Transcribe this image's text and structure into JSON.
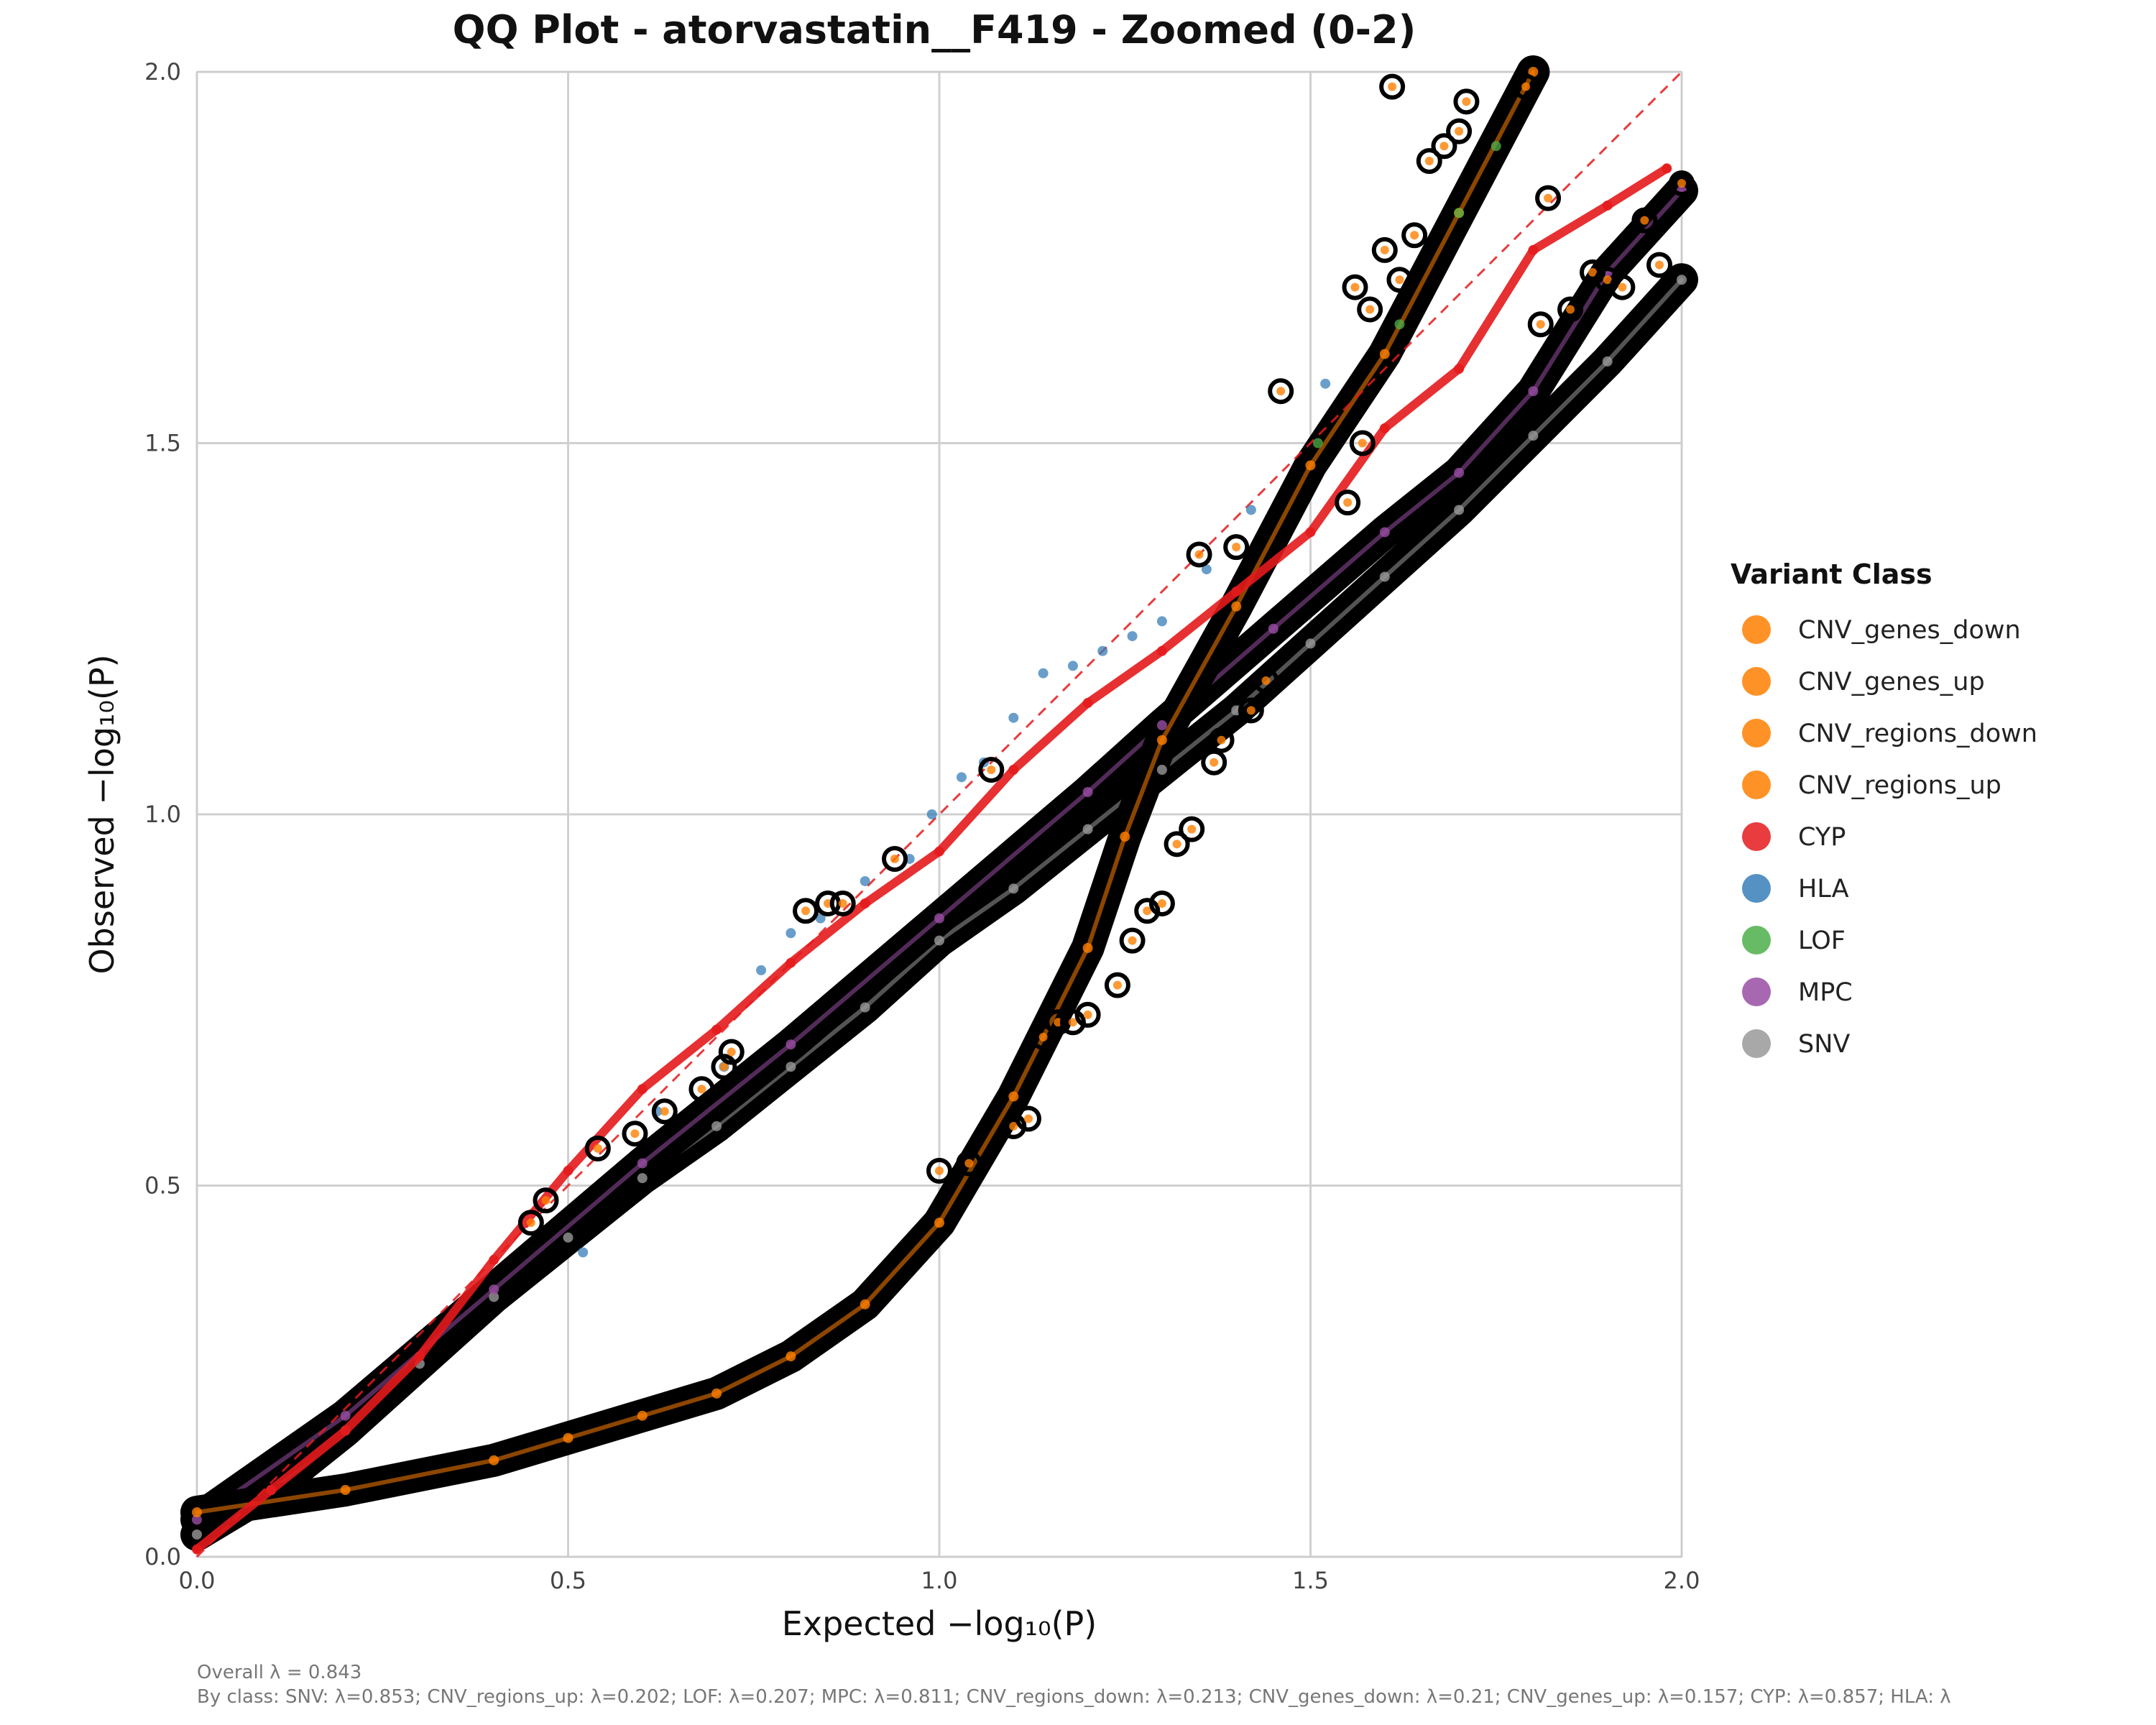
{
  "chart_data": {
    "type": "scatter",
    "title": "QQ Plot - atorvastatin__F419 - Zoomed (0-2)",
    "xlabel": "Expected −log₁₀(P)",
    "ylabel": "Observed −log₁₀(P)",
    "xlim": [
      0,
      2
    ],
    "ylim": [
      0,
      2
    ],
    "x_ticks": [
      "0.0",
      "0.5",
      "1.0",
      "1.5",
      "2.0"
    ],
    "y_ticks": [
      "0.0",
      "0.5",
      "1.0",
      "1.5",
      "2.0"
    ],
    "grid": true,
    "reference_line": {
      "style": "dashed",
      "color": "#e41a1c",
      "from": [
        0,
        0
      ],
      "to": [
        2,
        2
      ]
    },
    "legend": {
      "title": "Variant Class",
      "placement": "right",
      "entries": [
        {
          "label": "CNV_genes_down",
          "color": "#ff7f00"
        },
        {
          "label": "CNV_genes_up",
          "color": "#ff7f00"
        },
        {
          "label": "CNV_regions_down",
          "color": "#ff7f00"
        },
        {
          "label": "CNV_regions_up",
          "color": "#ff7f00"
        },
        {
          "label": "CYP",
          "color": "#e41a1c"
        },
        {
          "label": "HLA",
          "color": "#377eb8"
        },
        {
          "label": "LOF",
          "color": "#4daf4a"
        },
        {
          "label": "MPC",
          "color": "#984ea3"
        },
        {
          "label": "SNV",
          "color": "#999999"
        }
      ]
    },
    "series": [
      {
        "name": "SNV",
        "color": "#999999",
        "style": "dense-band",
        "x": [
          0,
          0.1,
          0.2,
          0.3,
          0.4,
          0.5,
          0.6,
          0.7,
          0.8,
          0.9,
          1.0,
          1.1,
          1.2,
          1.3,
          1.4,
          1.5,
          1.6,
          1.7,
          1.8,
          1.9,
          2.0
        ],
        "y": [
          0.03,
          0.09,
          0.17,
          0.26,
          0.35,
          0.43,
          0.51,
          0.58,
          0.66,
          0.74,
          0.83,
          0.9,
          0.98,
          1.06,
          1.14,
          1.23,
          1.32,
          1.41,
          1.51,
          1.61,
          1.72
        ]
      },
      {
        "name": "MPC",
        "color": "#984ea3",
        "style": "dense-band",
        "x": [
          0,
          0.2,
          0.4,
          0.6,
          0.8,
          1.0,
          1.2,
          1.3,
          1.45,
          1.6,
          1.7,
          1.8,
          1.9,
          2.0
        ],
        "y": [
          0.05,
          0.19,
          0.36,
          0.53,
          0.69,
          0.86,
          1.03,
          1.12,
          1.25,
          1.38,
          1.46,
          1.57,
          1.73,
          1.84
        ]
      },
      {
        "name": "CNV_regions_up",
        "color": "#ff7f00",
        "style": "dense-band",
        "x": [
          0,
          0.2,
          0.4,
          0.5,
          0.6,
          0.7,
          0.8,
          0.9,
          1.0,
          1.1,
          1.2,
          1.25,
          1.3,
          1.4,
          1.5,
          1.6,
          1.7,
          1.8
        ],
        "y": [
          0.06,
          0.09,
          0.13,
          0.16,
          0.19,
          0.22,
          0.27,
          0.34,
          0.45,
          0.62,
          0.82,
          0.97,
          1.1,
          1.28,
          1.47,
          1.62,
          1.81,
          2.0
        ]
      },
      {
        "name": "CYP",
        "color": "#e41a1c",
        "style": "line-points",
        "x": [
          0,
          0.1,
          0.2,
          0.3,
          0.4,
          0.5,
          0.6,
          0.7,
          0.8,
          0.9,
          1.0,
          1.1,
          1.2,
          1.3,
          1.4,
          1.5,
          1.6,
          1.7,
          1.8,
          1.9,
          1.98
        ],
        "y": [
          0.01,
          0.09,
          0.17,
          0.27,
          0.4,
          0.52,
          0.63,
          0.71,
          0.8,
          0.88,
          0.95,
          1.06,
          1.15,
          1.22,
          1.3,
          1.38,
          1.52,
          1.6,
          1.76,
          1.82,
          1.87
        ]
      },
      {
        "name": "HLA",
        "color": "#377eb8",
        "style": "points",
        "x": [
          0.52,
          0.62,
          0.71,
          0.76,
          0.8,
          0.84,
          0.9,
          0.96,
          0.99,
          1.03,
          1.06,
          1.1,
          1.14,
          1.18,
          1.22,
          1.26,
          1.3,
          1.36,
          1.42,
          1.52
        ],
        "y": [
          0.41,
          0.6,
          0.66,
          0.79,
          0.84,
          0.86,
          0.91,
          0.94,
          1.0,
          1.05,
          1.07,
          1.13,
          1.19,
          1.2,
          1.22,
          1.24,
          1.26,
          1.33,
          1.41,
          1.58
        ]
      },
      {
        "name": "LOF",
        "color": "#4daf4a",
        "style": "points",
        "x": [
          1.51,
          1.62,
          1.7,
          1.75
        ],
        "y": [
          1.5,
          1.66,
          1.81,
          1.9
        ]
      }
    ],
    "highlighted_outlined": {
      "x": [
        0.45,
        0.47,
        0.54,
        0.59,
        0.63,
        0.68,
        0.71,
        0.72,
        0.82,
        0.85,
        0.87,
        0.94,
        1.0,
        1.04,
        1.07,
        1.1,
        1.12,
        1.14,
        1.16,
        1.18,
        1.2,
        1.24,
        1.26,
        1.28,
        1.3,
        1.32,
        1.34,
        1.35,
        1.37,
        1.38,
        1.4,
        1.42,
        1.44,
        1.46,
        1.55,
        1.56,
        1.57,
        1.58,
        1.6,
        1.61,
        1.62,
        1.64,
        1.66,
        1.68,
        1.7,
        1.71,
        1.79,
        1.81,
        1.82,
        1.85,
        1.88,
        1.9,
        1.92,
        1.95,
        1.97,
        2.0
      ],
      "y": [
        0.45,
        0.48,
        0.55,
        0.57,
        0.6,
        0.63,
        0.66,
        0.68,
        0.87,
        0.88,
        0.88,
        0.94,
        0.52,
        0.53,
        1.06,
        0.58,
        0.59,
        0.7,
        0.72,
        0.72,
        0.73,
        0.77,
        0.83,
        0.87,
        0.88,
        0.96,
        0.98,
        1.35,
        1.07,
        1.1,
        1.36,
        1.14,
        1.18,
        1.57,
        1.42,
        1.71,
        1.5,
        1.68,
        1.76,
        1.98,
        1.72,
        1.78,
        1.88,
        1.9,
        1.92,
        1.96,
        1.98,
        1.66,
        1.83,
        1.68,
        1.73,
        1.72,
        1.71,
        1.8,
        1.74,
        1.85
      ],
      "ring_colors": [
        "#000000"
      ]
    }
  },
  "footer": {
    "overall": "Overall λ = 0.843",
    "by_class": "By class: SNV: λ=0.853; CNV_regions_up: λ=0.202; LOF: λ=0.207; MPC: λ=0.811; CNV_regions_down: λ=0.213; CNV_genes_down: λ=0.21; CNV_genes_up: λ=0.157; CYP: λ=0.857; HLA: λ"
  }
}
